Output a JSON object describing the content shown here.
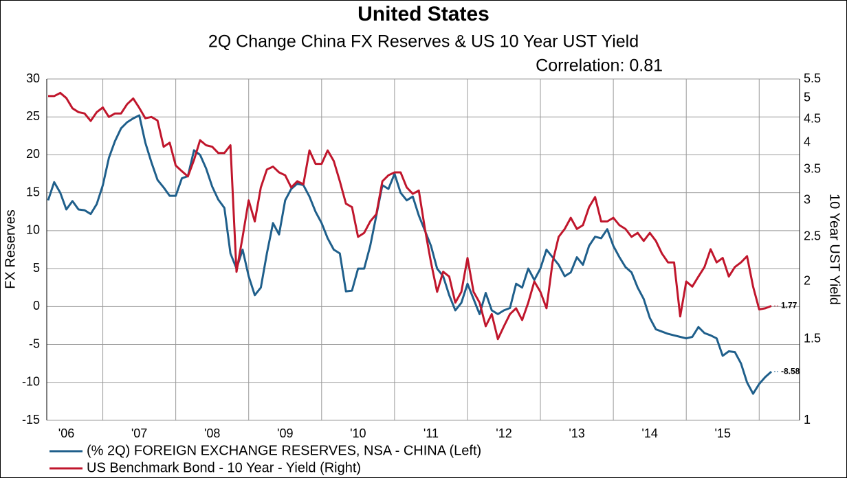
{
  "chart_data": {
    "type": "line",
    "title": "United States",
    "subtitle": "2Q Change China FX Reserves & US 10 Year UST Yield",
    "annotation": "Correlation: 0.81",
    "y_label": "FX Reserves",
    "y2_label": "10 Year UST Yield",
    "categories": [
      null,
      null,
      null,
      "'06",
      null,
      null,
      null,
      null,
      null,
      null,
      null,
      null,
      null,
      null,
      null,
      "'07",
      null,
      null,
      null,
      null,
      null,
      null,
      null,
      null,
      null,
      null,
      null,
      "'08",
      null,
      null,
      null,
      null,
      null,
      null,
      null,
      null,
      null,
      null,
      null,
      "'09",
      null,
      null,
      null,
      null,
      null,
      null,
      null,
      null,
      null,
      null,
      null,
      "'10",
      null,
      null,
      null,
      null,
      null,
      null,
      null,
      null,
      null,
      null,
      null,
      "'11",
      null,
      null,
      null,
      null,
      null,
      null,
      null,
      null,
      null,
      null,
      null,
      "'12",
      null,
      null,
      null,
      null,
      null,
      null,
      null,
      null,
      null,
      null,
      null,
      "'13",
      null,
      null,
      null,
      null,
      null,
      null,
      null,
      null,
      null,
      null,
      null,
      "'14",
      null,
      null,
      null,
      null,
      null,
      null,
      null,
      null,
      null,
      null,
      null,
      "'15",
      null,
      null,
      null,
      null,
      null,
      null,
      null,
      null
    ],
    "ylim": [
      -15,
      30
    ],
    "yticks": [
      -15,
      -10,
      -5,
      0,
      5,
      10,
      15,
      20,
      25,
      30
    ],
    "y2lim": [
      1,
      5.5
    ],
    "y2ticks": [
      1,
      1.5,
      2,
      2.5,
      3,
      3.5,
      4,
      4.5,
      5,
      5.5
    ],
    "y2log": true,
    "grid": true,
    "legend": "bottom-left",
    "series": [
      {
        "name": "(% 2Q) FOREIGN EXCHANGE RESERVES, NSA - CHINA  (Left)",
        "color": "#1f5f8b",
        "axis": "y",
        "values": [
          14,
          16.4,
          15,
          12.8,
          13.9,
          12.8,
          12.7,
          12.2,
          13.5,
          16,
          19.6,
          21.8,
          23.5,
          24.3,
          24.8,
          25.2,
          21.6,
          19,
          16.7,
          15.7,
          14.6,
          14.6,
          16.9,
          17.2,
          20.6,
          20,
          18.2,
          15.8,
          14.1,
          13,
          7,
          5,
          7.5,
          4,
          1.5,
          2.5,
          7,
          11,
          9.5,
          14,
          15.5,
          16.2,
          16,
          14.5,
          12.5,
          11,
          9,
          7.5,
          7,
          2,
          2.1,
          5,
          5,
          8,
          12,
          16,
          15.5,
          17.5,
          15,
          14,
          14.5,
          12,
          10,
          8,
          5,
          4,
          1.5,
          -0.5,
          0.5,
          3,
          1,
          -1,
          1.8,
          -0.5,
          -1,
          -0.5,
          -0.2,
          3,
          2.5,
          5,
          3.5,
          5,
          7.5,
          6.5,
          5.5,
          4,
          4.5,
          6.5,
          5.5,
          8,
          9.2,
          9,
          10.2,
          8,
          6.5,
          5.2,
          4.5,
          2.5,
          1,
          -1.5,
          -3,
          -3.3,
          -3.6,
          -3.8,
          -4,
          -4.2,
          -4,
          -2.7,
          -3.5,
          -3.8,
          -4.2,
          -6.5,
          -5.9,
          -6,
          -7.5,
          -10,
          -11.5,
          -10.2,
          -9.3,
          -8.58
        ]
      },
      {
        "name": "US Benchmark Bond - 10 Year - Yield  (Right)",
        "color": "#c0162c",
        "axis": "y2",
        "values": [
          5.05,
          5.05,
          5.13,
          5.0,
          4.75,
          4.66,
          4.63,
          4.46,
          4.66,
          4.77,
          4.55,
          4.63,
          4.63,
          4.85,
          4.99,
          4.76,
          4.52,
          4.55,
          4.47,
          3.92,
          4.0,
          3.57,
          3.47,
          3.38,
          3.67,
          4.05,
          3.95,
          3.92,
          3.8,
          3.8,
          3.95,
          2.1,
          2.5,
          3.0,
          2.7,
          3.2,
          3.5,
          3.55,
          3.45,
          3.4,
          3.2,
          3.3,
          3.25,
          3.85,
          3.6,
          3.6,
          3.85,
          3.65,
          3.3,
          2.95,
          2.9,
          2.5,
          2.55,
          2.7,
          2.8,
          3.3,
          3.4,
          3.45,
          3.45,
          3.2,
          3.1,
          3.15,
          2.6,
          2.2,
          1.9,
          2.1,
          2.05,
          1.8,
          1.9,
          2.25,
          1.9,
          1.8,
          1.6,
          1.7,
          1.5,
          1.6,
          1.7,
          1.75,
          1.65,
          1.8,
          2.0,
          1.9,
          1.75,
          2.2,
          2.5,
          2.6,
          2.75,
          2.6,
          2.65,
          2.9,
          3.05,
          2.7,
          2.7,
          2.75,
          2.65,
          2.6,
          2.5,
          2.55,
          2.45,
          2.55,
          2.45,
          2.3,
          2.2,
          2.2,
          1.68,
          2.0,
          1.95,
          2.05,
          2.15,
          2.35,
          2.2,
          2.25,
          2.05,
          2.15,
          2.2,
          2.27,
          1.95,
          1.74,
          1.75,
          1.77
        ]
      }
    ]
  }
}
